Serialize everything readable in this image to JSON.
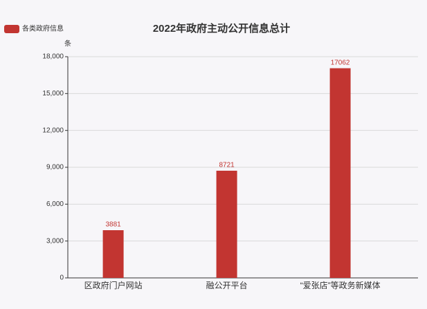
{
  "chart_data": {
    "type": "bar",
    "title": "2022年政府主动公开信息总计",
    "legend": "各类政府信息",
    "y_unit": "条",
    "categories": [
      "区政府门户网站",
      "融公开平台",
      "“爱张店”等政务新媒体"
    ],
    "values": [
      3881,
      8721,
      17062
    ],
    "color": "#c23531",
    "ylim": [
      0,
      18000
    ],
    "yticks": [
      0,
      {
        "value": 3000,
        "label": "3,000"
      },
      {
        "value": 6000,
        "label": "6,000"
      },
      {
        "value": 9000,
        "label": "9,000"
      },
      {
        "value": 12000,
        "label": "12,000"
      },
      {
        "value": 15000,
        "label": "15,000"
      },
      {
        "value": 18000,
        "label": "18,000"
      }
    ],
    "grid": true
  }
}
